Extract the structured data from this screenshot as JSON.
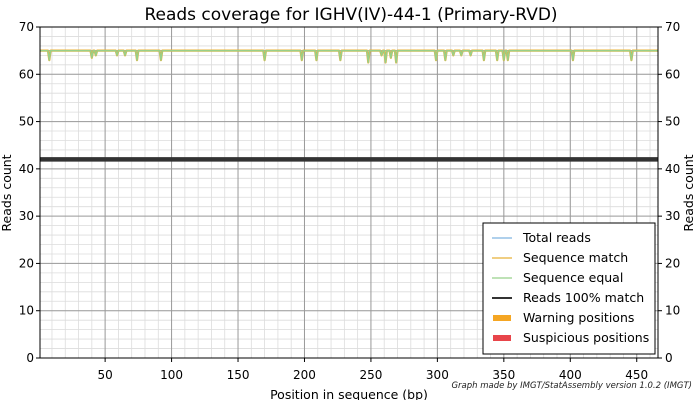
{
  "chart_data": {
    "type": "line",
    "title": "Reads coverage for IGHV(IV)-44-1 (Primary-RVD)",
    "xlabel": "Position in sequence (bp)",
    "ylabel": "Reads count",
    "ylabel_right": "Reads count",
    "xlim": [
      1,
      466
    ],
    "ylim": [
      0,
      70
    ],
    "x_ticks": [
      50,
      100,
      150,
      200,
      250,
      300,
      350,
      400,
      450
    ],
    "y_ticks": [
      0,
      10,
      20,
      30,
      40,
      50,
      60,
      70
    ],
    "x_minor_step": 10,
    "y_minor_step": 2,
    "grid": true,
    "legend_position": "bottom-right",
    "baseline_reads": 65,
    "dips": [
      {
        "x": 8,
        "y": 63
      },
      {
        "x": 40,
        "y": 63.5
      },
      {
        "x": 43,
        "y": 64
      },
      {
        "x": 59,
        "y": 64
      },
      {
        "x": 65,
        "y": 64
      },
      {
        "x": 74,
        "y": 63
      },
      {
        "x": 92,
        "y": 63
      },
      {
        "x": 170,
        "y": 63
      },
      {
        "x": 198,
        "y": 63
      },
      {
        "x": 209,
        "y": 63
      },
      {
        "x": 227,
        "y": 63
      },
      {
        "x": 248,
        "y": 62.5
      },
      {
        "x": 258,
        "y": 64
      },
      {
        "x": 261,
        "y": 62.5
      },
      {
        "x": 265,
        "y": 63.5
      },
      {
        "x": 269,
        "y": 62.5
      },
      {
        "x": 299,
        "y": 63
      },
      {
        "x": 306,
        "y": 63
      },
      {
        "x": 312,
        "y": 64
      },
      {
        "x": 318,
        "y": 64
      },
      {
        "x": 325,
        "y": 64
      },
      {
        "x": 335,
        "y": 63
      },
      {
        "x": 345,
        "y": 63
      },
      {
        "x": 350,
        "y": 63
      },
      {
        "x": 353,
        "y": 63
      },
      {
        "x": 402,
        "y": 63
      },
      {
        "x": 446,
        "y": 63
      }
    ],
    "series": [
      {
        "name": "Total reads",
        "color": "#7fb4e0",
        "style": "line",
        "constant": 65
      },
      {
        "name": "Sequence match",
        "color": "#e8b038",
        "style": "line",
        "follows": "dips"
      },
      {
        "name": "Sequence equal",
        "color": "#98d08a",
        "style": "line",
        "follows": "dips"
      },
      {
        "name": "Reads 100% match",
        "color": "#333333",
        "style": "line",
        "constant": 42
      },
      {
        "name": "Warning positions",
        "color": "#f5a623",
        "style": "bar",
        "values": []
      },
      {
        "name": "Suspicious positions",
        "color": "#e8454a",
        "style": "bar",
        "values": []
      }
    ]
  },
  "credit": "Graph made by IMGT/StatAssembly version 1.0.2 (IMGT)"
}
